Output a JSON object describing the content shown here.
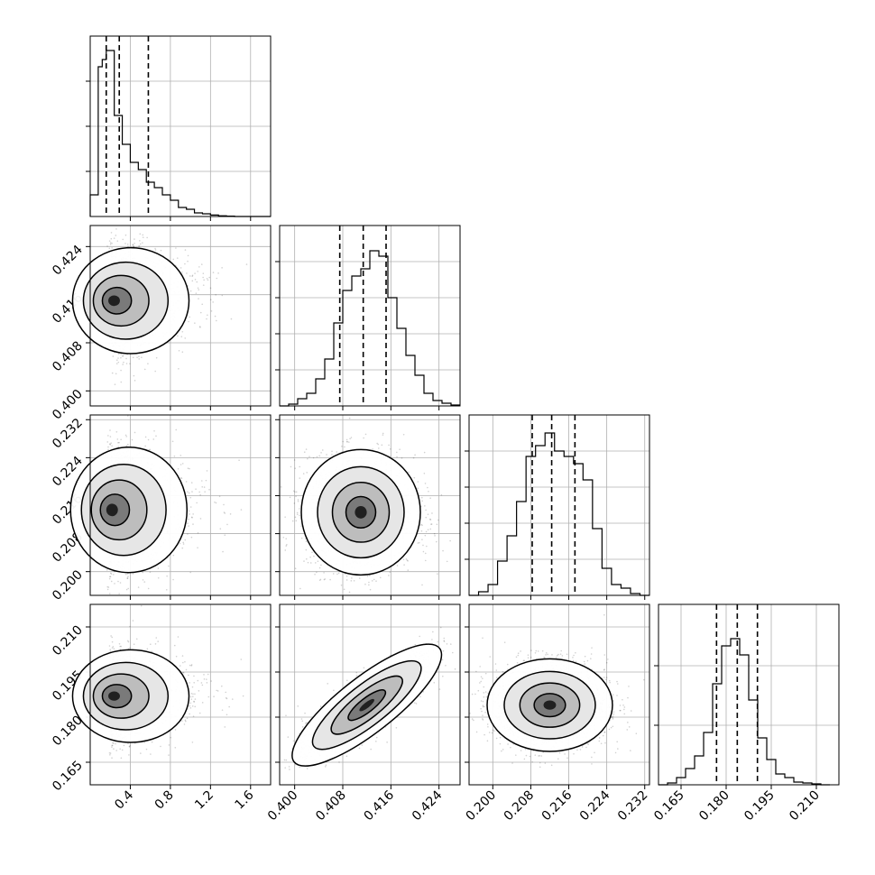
{
  "chart_data": {
    "type": "corner",
    "grid": true,
    "panels": [
      {
        "id": "hist-0",
        "kind": "histogram",
        "xlim": [
          0.0,
          1.8
        ],
        "xticks": [
          0.4,
          0.8,
          1.2,
          1.6
        ],
        "bins": [
          0.0,
          0.04,
          0.08,
          0.12,
          0.16,
          0.2,
          0.24,
          0.28,
          0.32,
          0.36,
          0.4,
          0.44,
          0.48,
          0.52,
          0.56,
          0.6,
          0.64,
          0.68,
          0.72,
          0.76,
          0.8,
          0.84,
          0.88,
          0.92,
          0.96,
          1.0,
          1.04,
          1.08,
          1.12,
          1.16,
          1.2,
          1.24,
          1.28,
          1.32,
          1.36,
          1.4,
          1.44,
          1.48,
          1.52,
          1.56,
          1.6,
          1.64,
          1.68,
          1.72,
          1.76
        ],
        "counts": [
          0.12,
          0.12,
          0.83,
          0.87,
          0.92,
          0.92,
          0.56,
          0.56,
          0.4,
          0.4,
          0.3,
          0.3,
          0.26,
          0.26,
          0.19,
          0.19,
          0.16,
          0.16,
          0.12,
          0.12,
          0.09,
          0.09,
          0.05,
          0.05,
          0.04,
          0.04,
          0.02,
          0.02,
          0.015,
          0.015,
          0.008,
          0.008,
          0.004,
          0.004,
          0.002,
          0.002,
          0.0,
          0.0,
          0.0,
          0.0,
          0.0,
          0.0,
          0.0,
          0.0
        ],
        "ymax": 1.0,
        "yticks": [
          0.25,
          0.5,
          0.75
        ],
        "quantiles": [
          0.16,
          0.29,
          0.58
        ]
      },
      {
        "id": "hist-1",
        "kind": "histogram",
        "xlim": [
          0.3975,
          0.4275
        ],
        "xticks": [
          0.4,
          0.408,
          0.416,
          0.424
        ],
        "bins": [
          0.3975,
          0.399,
          0.4005,
          0.402,
          0.4035,
          0.405,
          0.4065,
          0.408,
          0.4095,
          0.411,
          0.4125,
          0.414,
          0.4155,
          0.417,
          0.4185,
          0.42,
          0.4215,
          0.423,
          0.4245,
          0.426
        ],
        "counts": [
          0.0,
          0.01,
          0.04,
          0.07,
          0.15,
          0.26,
          0.46,
          0.64,
          0.72,
          0.76,
          0.86,
          0.83,
          0.6,
          0.43,
          0.28,
          0.17,
          0.07,
          0.03,
          0.015,
          0.005
        ],
        "ymax": 1.0,
        "yticks": [
          0.2,
          0.4,
          0.6,
          0.8
        ],
        "quantiles": [
          0.4075,
          0.4114,
          0.4152
        ]
      },
      {
        "id": "hist-2",
        "kind": "histogram",
        "xlim": [
          0.195,
          0.233
        ],
        "xticks": [
          0.2,
          0.208,
          0.216,
          0.224,
          0.232
        ],
        "bins": [
          0.195,
          0.197,
          0.199,
          0.201,
          0.203,
          0.205,
          0.207,
          0.209,
          0.211,
          0.213,
          0.215,
          0.217,
          0.219,
          0.221,
          0.223,
          0.225,
          0.227,
          0.229,
          0.231
        ],
        "counts": [
          0.0,
          0.02,
          0.06,
          0.19,
          0.33,
          0.52,
          0.77,
          0.83,
          0.9,
          0.8,
          0.77,
          0.73,
          0.64,
          0.37,
          0.15,
          0.06,
          0.04,
          0.01
        ],
        "ymax": 1.0,
        "yticks": [
          0.2,
          0.4,
          0.6,
          0.8
        ],
        "quantiles": [
          0.2083,
          0.2124,
          0.2173
        ]
      },
      {
        "id": "hist-3",
        "kind": "histogram",
        "xlim": [
          0.1575,
          0.2175
        ],
        "xticks": [
          0.165,
          0.18,
          0.195,
          0.21
        ],
        "bins": [
          0.1575,
          0.1605,
          0.1635,
          0.1665,
          0.1695,
          0.1725,
          0.1755,
          0.1785,
          0.1815,
          0.1845,
          0.1875,
          0.1905,
          0.1935,
          0.1965,
          0.1995,
          0.2025,
          0.2055,
          0.2085,
          0.2115
        ],
        "counts": [
          0.0,
          0.01,
          0.04,
          0.09,
          0.16,
          0.29,
          0.56,
          0.77,
          0.81,
          0.72,
          0.47,
          0.26,
          0.14,
          0.06,
          0.04,
          0.015,
          0.01,
          0.005
        ],
        "ymax": 1.0,
        "yticks": [
          0.33,
          0.66
        ],
        "quantiles": [
          0.1768,
          0.1837,
          0.1904
        ]
      },
      {
        "id": "scatter-1-0",
        "kind": "density2d",
        "xlim": [
          0.0,
          1.8
        ],
        "ylim": [
          0.3975,
          0.4275
        ],
        "yticks": [
          0.4,
          0.408,
          0.416,
          0.424
        ],
        "mode": [
          0.22,
          0.415
        ],
        "n_points": 2200,
        "spread": [
          0.16,
          0.004
        ],
        "tail": "right"
      },
      {
        "id": "scatter-2-0",
        "kind": "density2d",
        "xlim": [
          0.0,
          1.8
        ],
        "ylim": [
          0.195,
          0.233
        ],
        "yticks": [
          0.2,
          0.208,
          0.216,
          0.224,
          0.232
        ],
        "mode": [
          0.2,
          0.213
        ],
        "n_points": 2200,
        "spread": [
          0.16,
          0.006
        ],
        "tail": "right"
      },
      {
        "id": "scatter-2-1",
        "kind": "density2d",
        "xlim": [
          0.3975,
          0.4275
        ],
        "ylim": [
          0.195,
          0.233
        ],
        "mode": [
          0.411,
          0.2125
        ],
        "n_points": 2200,
        "spread": [
          0.0045,
          0.006
        ],
        "tail": "none"
      },
      {
        "id": "scatter-3-0",
        "kind": "density2d",
        "xlim": [
          0.0,
          1.8
        ],
        "ylim": [
          0.1575,
          0.2175
        ],
        "yticks": [
          0.165,
          0.18,
          0.195,
          0.21
        ],
        "mode": [
          0.22,
          0.187
        ],
        "n_points": 2200,
        "spread": [
          0.16,
          0.007
        ],
        "tail": "right"
      },
      {
        "id": "scatter-3-1",
        "kind": "density2d",
        "xlim": [
          0.3975,
          0.4275
        ],
        "ylim": [
          0.1575,
          0.2175
        ],
        "mode": [
          0.412,
          0.184
        ],
        "n_points": 2200,
        "spread": [
          0.0045,
          0.007
        ],
        "tail": "diagonal"
      },
      {
        "id": "scatter-3-2",
        "kind": "density2d",
        "xlim": [
          0.195,
          0.233
        ],
        "ylim": [
          0.1575,
          0.2175
        ],
        "mode": [
          0.212,
          0.184
        ],
        "n_points": 2200,
        "spread": [
          0.006,
          0.007
        ],
        "tail": "none"
      }
    ]
  }
}
